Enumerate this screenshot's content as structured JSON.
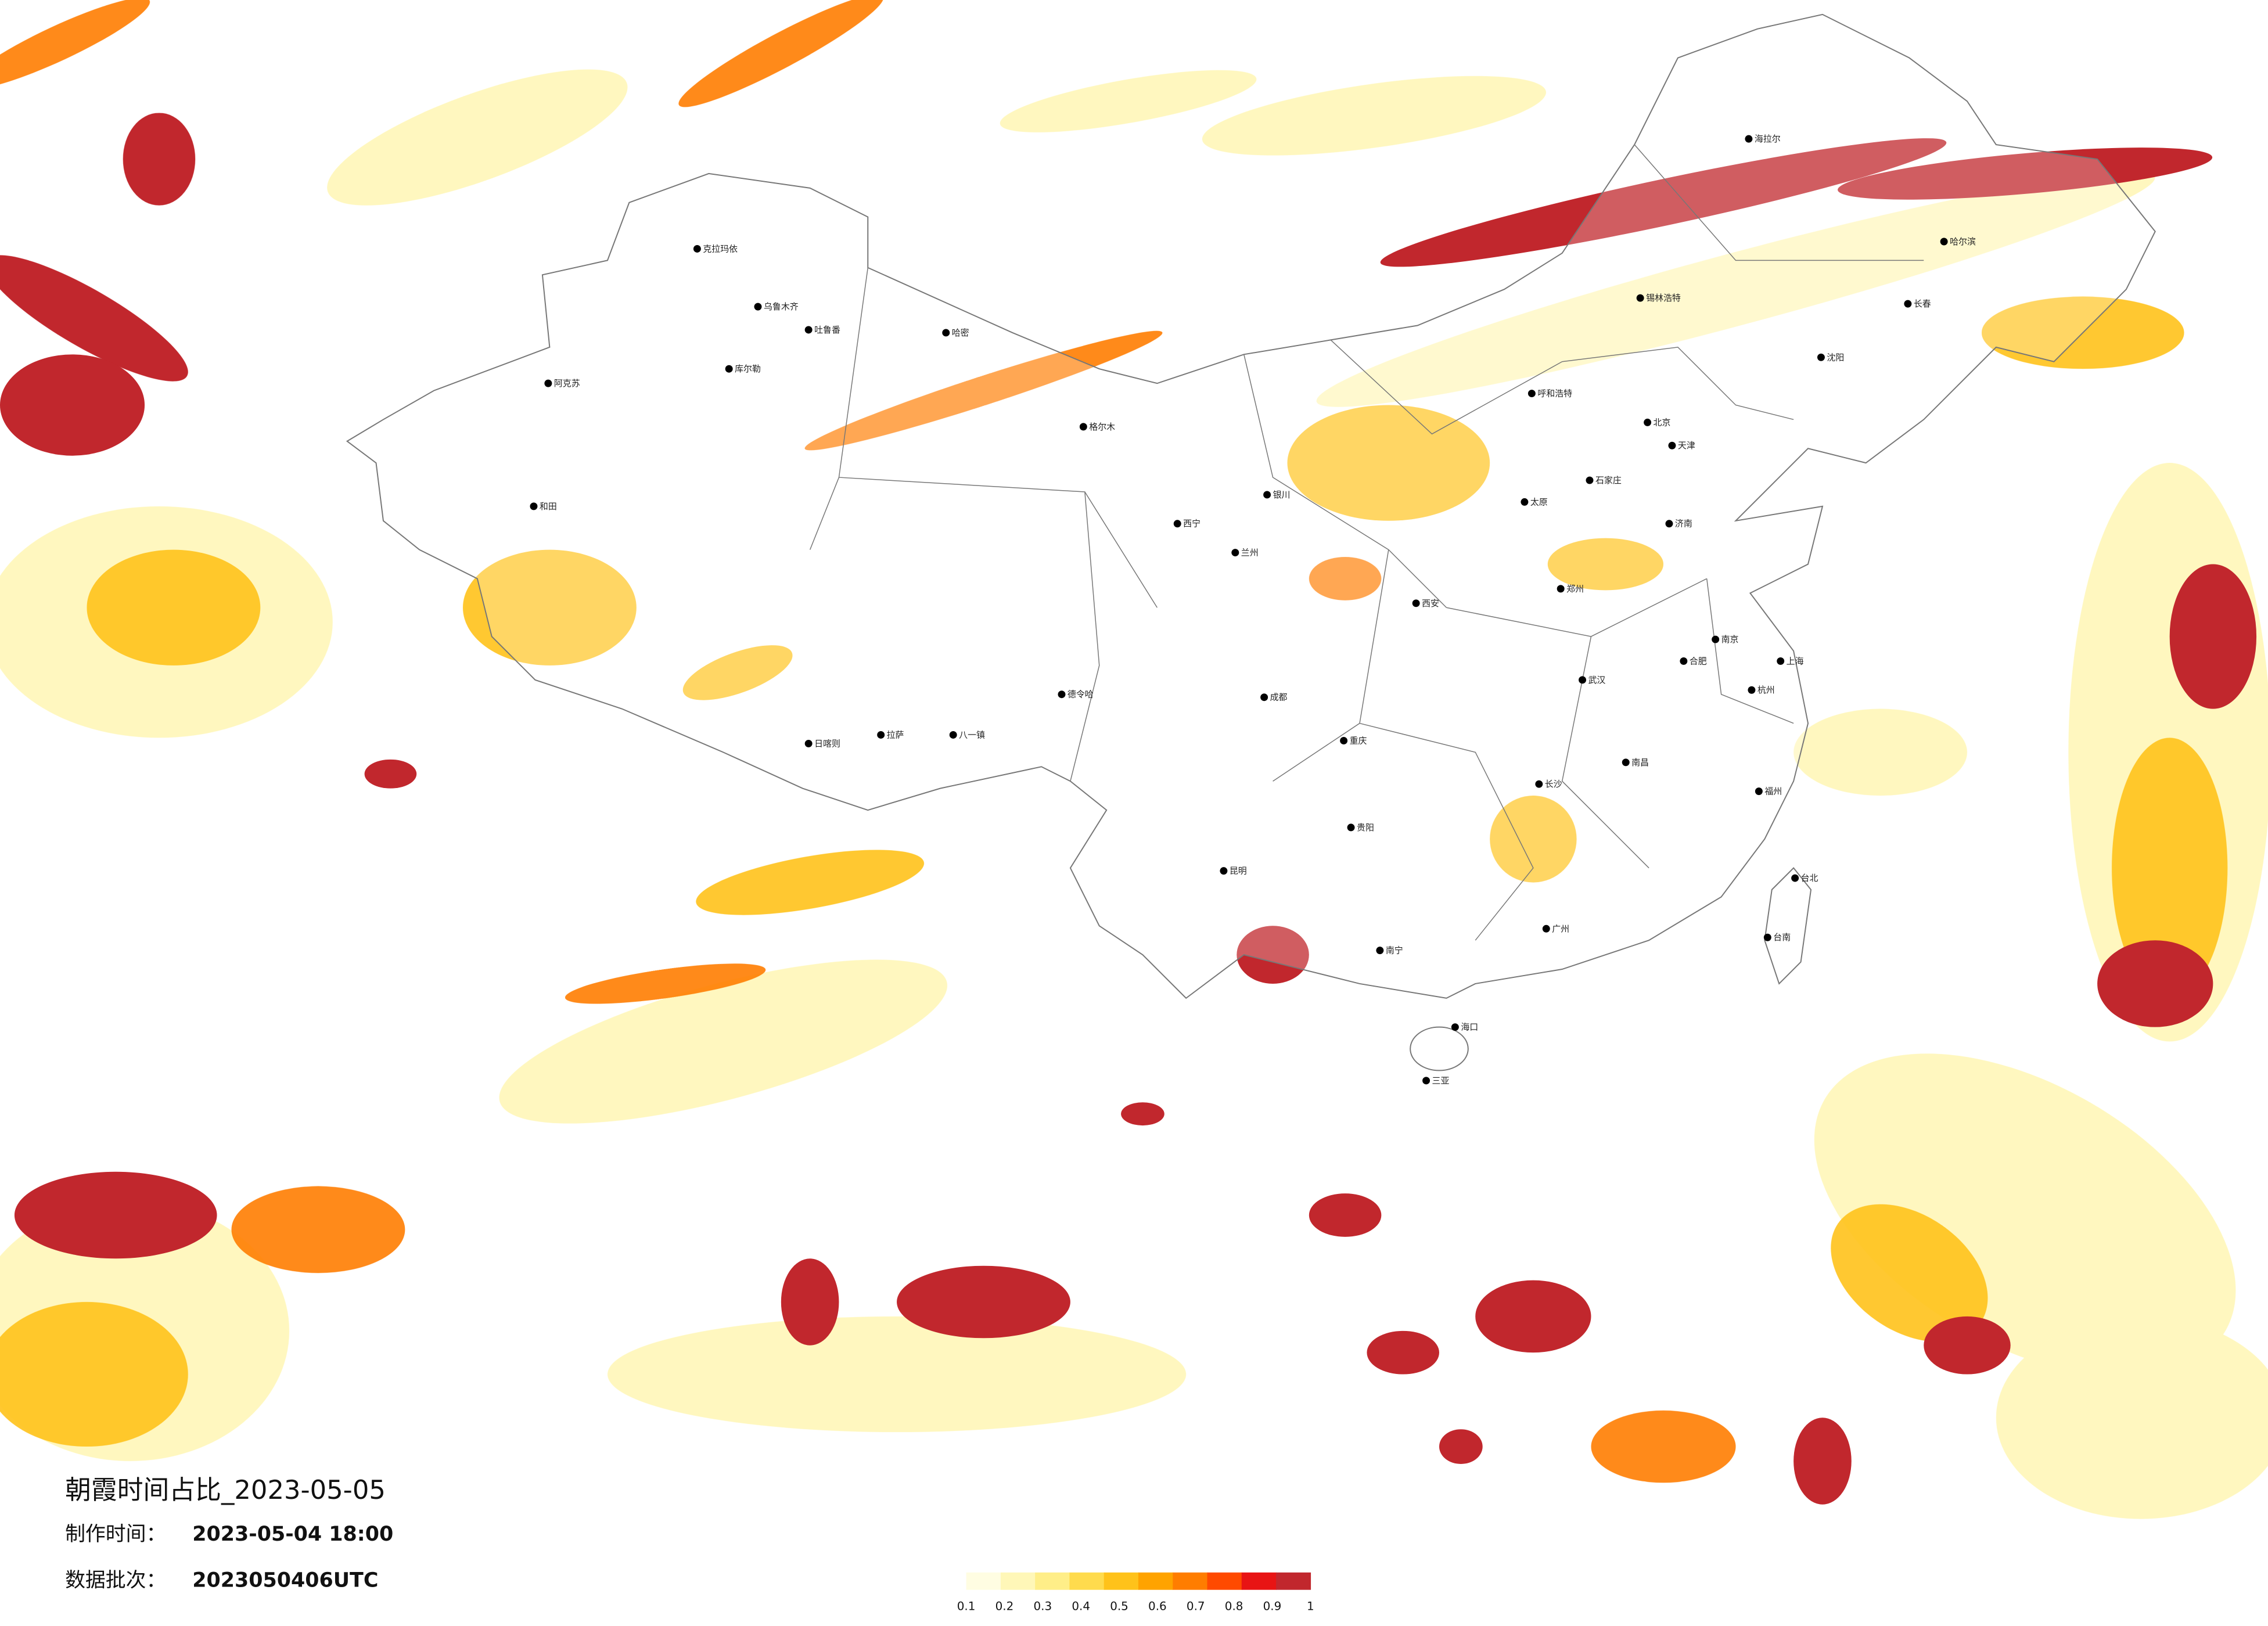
{
  "header": {
    "title": "朝霞时间占比_2023-05-05"
  },
  "production_time": {
    "label": "制作时间：",
    "value": "2023-05-04 18:00"
  },
  "batch": {
    "label": "数据批次：",
    "value": "2023050406UTC"
  },
  "colorbar": {
    "ticks": [
      0.1,
      0.2,
      0.3,
      0.4,
      0.5,
      0.6,
      0.7,
      0.8,
      0.9,
      1
    ],
    "colors": [
      "#fffde2",
      "#fff7b8",
      "#ffee88",
      "#ffdb4d",
      "#ffc21a",
      "#ffa300",
      "#ff7d00",
      "#ff4a00",
      "#e81414",
      "#c1272d"
    ]
  },
  "cities": [
    "克拉玛依",
    "乌鲁木齐",
    "吐鲁番",
    "哈密",
    "库尔勒",
    "阿克苏",
    "和田",
    "格尔木",
    "德令哈",
    "拉萨",
    "日喀则",
    "八一镇",
    "西宁",
    "兰州",
    "银川",
    "呼和浩特",
    "锡林浩特",
    "海拉尔",
    "哈尔滨",
    "长春",
    "沈阳",
    "北京",
    "天津",
    "石家庄",
    "太原",
    "济南",
    "郑州",
    "西安",
    "南京",
    "合肥",
    "上海",
    "杭州",
    "武汉",
    "南昌",
    "长沙",
    "成都",
    "重庆",
    "贵阳",
    "昆明",
    "南宁",
    "广州",
    "福州",
    "台北",
    "台南",
    "海口",
    "三亚"
  ]
}
